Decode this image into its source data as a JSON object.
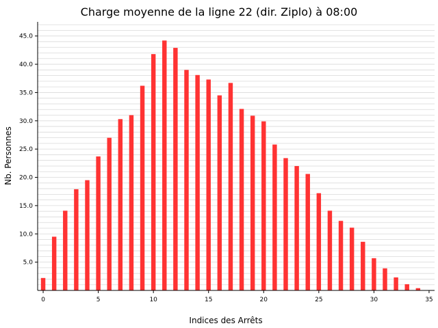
{
  "chart_data": {
    "type": "bar",
    "title": "Charge moyenne de la ligne 22 (dir. Ziplo) à 08:00",
    "xlabel": "Indices des Arrêts",
    "ylabel": "Nb. Personnes",
    "x": [
      0,
      1,
      2,
      3,
      4,
      5,
      6,
      7,
      8,
      9,
      10,
      11,
      12,
      13,
      14,
      15,
      16,
      17,
      18,
      19,
      20,
      21,
      22,
      23,
      24,
      25,
      26,
      27,
      28,
      29,
      30,
      31,
      32,
      33,
      34
    ],
    "values": [
      2.2,
      9.5,
      14.1,
      17.9,
      19.5,
      23.7,
      27.0,
      30.3,
      31.0,
      36.2,
      41.8,
      44.2,
      42.9,
      39.0,
      38.1,
      37.3,
      34.5,
      36.7,
      32.1,
      30.9,
      29.9,
      25.8,
      23.4,
      22.0,
      20.6,
      17.2,
      14.1,
      12.3,
      11.1,
      8.6,
      5.7,
      3.9,
      2.3,
      1.1,
      0.4
    ],
    "xlim": [
      -0.5,
      35.5
    ],
    "ylim": [
      0,
      47.5
    ],
    "xticks": [
      0,
      5,
      10,
      15,
      20,
      25,
      30,
      35
    ],
    "yticks": [
      5.0,
      10.0,
      15.0,
      20.0,
      25.0,
      30.0,
      35.0,
      40.0,
      45.0
    ],
    "bar_color": "#ff3333",
    "grid": "horizontal minor lines",
    "grid_color": "#d9d9d9"
  }
}
